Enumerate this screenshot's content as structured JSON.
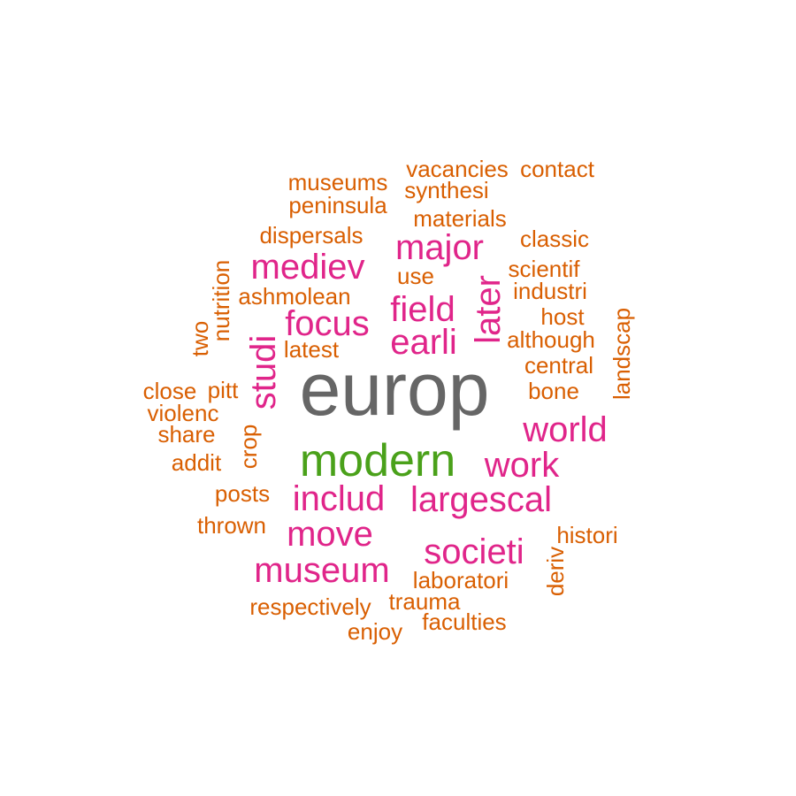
{
  "colors": {
    "grey": "#666666",
    "green": "#4aa11a",
    "pink": "#e0258a",
    "orange": "#d95f02"
  },
  "words": {
    "europ": "europ",
    "modern": "modern",
    "major": "major",
    "mediev": "mediev",
    "field": "field",
    "focus": "focus",
    "earli": "earli",
    "later": "later",
    "studi": "studi",
    "world": "world",
    "work": "work",
    "includ": "includ",
    "largescal": "largescal",
    "move": "move",
    "societi": "societi",
    "museum": "museum",
    "vacancies": "vacancies",
    "contact": "contact",
    "museums": "museums",
    "synthesi": "synthesi",
    "peninsula": "peninsula",
    "materials": "materials",
    "dispersals": "dispersals",
    "classic": "classic",
    "nutrition": "nutrition",
    "scientif": "scientif",
    "use": "use",
    "ashmolean": "ashmolean",
    "industri": "industri",
    "landscap": "landscap",
    "host": "host",
    "two": "two",
    "although": "although",
    "latest": "latest",
    "central": "central",
    "close": "close",
    "pitt": "pitt",
    "bone": "bone",
    "violenc": "violenc",
    "share": "share",
    "crop": "crop",
    "addit": "addit",
    "posts": "posts",
    "thrown": "thrown",
    "histori": "histori",
    "deriv": "deriv",
    "laboratori": "laboratori",
    "trauma": "trauma",
    "respectively": "respectively",
    "faculties": "faculties",
    "enjoy": "enjoy"
  }
}
